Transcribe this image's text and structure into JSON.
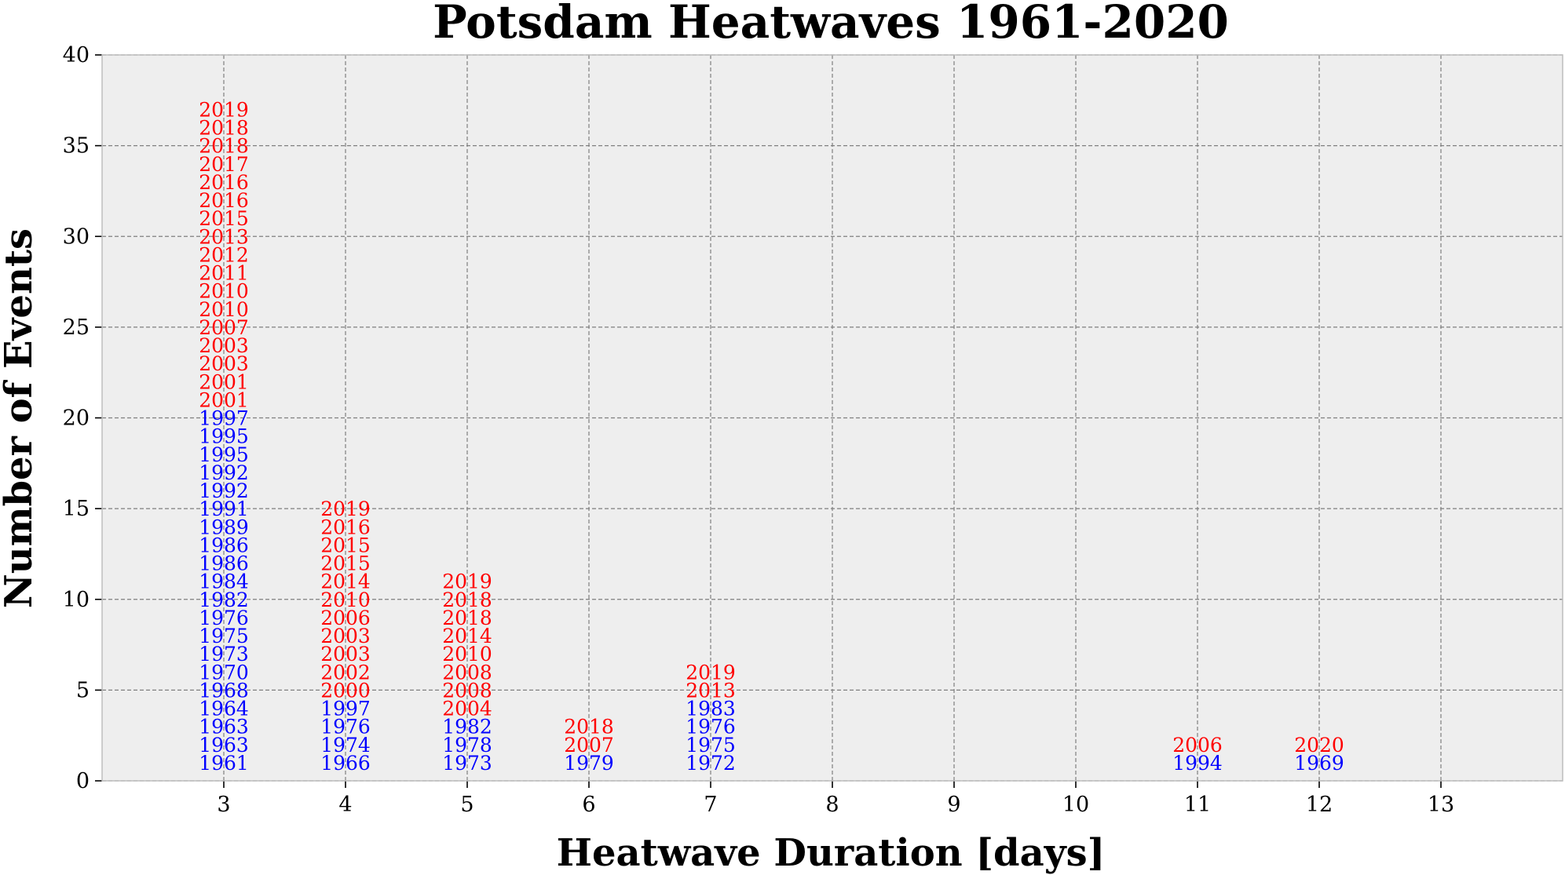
{
  "chart_data": {
    "type": "scatter",
    "title": "Potsdam Heatwaves 1961-2020",
    "xlabel": "Heatwave Duration [days]",
    "ylabel": "Number of Events",
    "xlim": [
      2,
      14
    ],
    "ylim": [
      0,
      40
    ],
    "xticks": [
      "3",
      "4",
      "5",
      "6",
      "7",
      "8",
      "9",
      "10",
      "11",
      "12",
      "13"
    ],
    "yticks": [
      "0",
      "5",
      "10",
      "15",
      "20",
      "25",
      "30",
      "35",
      "40"
    ],
    "grid": true,
    "background_color": "#eeeeee",
    "series": [
      {
        "color": "#0000ff",
        "points": [
          {
            "x": 3,
            "y": 1,
            "label": "1961"
          },
          {
            "x": 3,
            "y": 2,
            "label": "1963"
          },
          {
            "x": 3,
            "y": 3,
            "label": "1963"
          },
          {
            "x": 3,
            "y": 4,
            "label": "1964"
          },
          {
            "x": 3,
            "y": 5,
            "label": "1968"
          },
          {
            "x": 3,
            "y": 6,
            "label": "1970"
          },
          {
            "x": 3,
            "y": 7,
            "label": "1973"
          },
          {
            "x": 3,
            "y": 8,
            "label": "1975"
          },
          {
            "x": 3,
            "y": 9,
            "label": "1976"
          },
          {
            "x": 3,
            "y": 10,
            "label": "1982"
          },
          {
            "x": 3,
            "y": 11,
            "label": "1984"
          },
          {
            "x": 3,
            "y": 12,
            "label": "1986"
          },
          {
            "x": 3,
            "y": 13,
            "label": "1986"
          },
          {
            "x": 3,
            "y": 14,
            "label": "1989"
          },
          {
            "x": 3,
            "y": 15,
            "label": "1991"
          },
          {
            "x": 3,
            "y": 16,
            "label": "1992"
          },
          {
            "x": 3,
            "y": 17,
            "label": "1992"
          },
          {
            "x": 3,
            "y": 18,
            "label": "1995"
          },
          {
            "x": 3,
            "y": 19,
            "label": "1995"
          },
          {
            "x": 3,
            "y": 20,
            "label": "1997"
          },
          {
            "x": 4,
            "y": 1,
            "label": "1966"
          },
          {
            "x": 4,
            "y": 2,
            "label": "1974"
          },
          {
            "x": 4,
            "y": 3,
            "label": "1976"
          },
          {
            "x": 4,
            "y": 4,
            "label": "1997"
          },
          {
            "x": 5,
            "y": 1,
            "label": "1973"
          },
          {
            "x": 5,
            "y": 2,
            "label": "1978"
          },
          {
            "x": 5,
            "y": 3,
            "label": "1982"
          },
          {
            "x": 6,
            "y": 1,
            "label": "1979"
          },
          {
            "x": 7,
            "y": 1,
            "label": "1972"
          },
          {
            "x": 7,
            "y": 2,
            "label": "1975"
          },
          {
            "x": 7,
            "y": 3,
            "label": "1976"
          },
          {
            "x": 7,
            "y": 4,
            "label": "1983"
          },
          {
            "x": 11,
            "y": 1,
            "label": "1994"
          },
          {
            "x": 12,
            "y": 1,
            "label": "1969"
          }
        ]
      },
      {
        "color": "#ff0000",
        "points": [
          {
            "x": 3,
            "y": 21,
            "label": "2001"
          },
          {
            "x": 3,
            "y": 22,
            "label": "2001"
          },
          {
            "x": 3,
            "y": 23,
            "label": "2003"
          },
          {
            "x": 3,
            "y": 24,
            "label": "2003"
          },
          {
            "x": 3,
            "y": 25,
            "label": "2007"
          },
          {
            "x": 3,
            "y": 26,
            "label": "2010"
          },
          {
            "x": 3,
            "y": 27,
            "label": "2010"
          },
          {
            "x": 3,
            "y": 28,
            "label": "2011"
          },
          {
            "x": 3,
            "y": 29,
            "label": "2012"
          },
          {
            "x": 3,
            "y": 30,
            "label": "2013"
          },
          {
            "x": 3,
            "y": 31,
            "label": "2015"
          },
          {
            "x": 3,
            "y": 32,
            "label": "2016"
          },
          {
            "x": 3,
            "y": 33,
            "label": "2016"
          },
          {
            "x": 3,
            "y": 34,
            "label": "2017"
          },
          {
            "x": 3,
            "y": 35,
            "label": "2018"
          },
          {
            "x": 3,
            "y": 36,
            "label": "2018"
          },
          {
            "x": 3,
            "y": 37,
            "label": "2019"
          },
          {
            "x": 4,
            "y": 5,
            "label": "2000"
          },
          {
            "x": 4,
            "y": 6,
            "label": "2002"
          },
          {
            "x": 4,
            "y": 7,
            "label": "2003"
          },
          {
            "x": 4,
            "y": 8,
            "label": "2003"
          },
          {
            "x": 4,
            "y": 9,
            "label": "2006"
          },
          {
            "x": 4,
            "y": 10,
            "label": "2010"
          },
          {
            "x": 4,
            "y": 11,
            "label": "2014"
          },
          {
            "x": 4,
            "y": 12,
            "label": "2015"
          },
          {
            "x": 4,
            "y": 13,
            "label": "2015"
          },
          {
            "x": 4,
            "y": 14,
            "label": "2016"
          },
          {
            "x": 4,
            "y": 15,
            "label": "2019"
          },
          {
            "x": 5,
            "y": 4,
            "label": "2004"
          },
          {
            "x": 5,
            "y": 5,
            "label": "2008"
          },
          {
            "x": 5,
            "y": 6,
            "label": "2008"
          },
          {
            "x": 5,
            "y": 7,
            "label": "2010"
          },
          {
            "x": 5,
            "y": 8,
            "label": "2014"
          },
          {
            "x": 5,
            "y": 9,
            "label": "2018"
          },
          {
            "x": 5,
            "y": 10,
            "label": "2018"
          },
          {
            "x": 5,
            "y": 11,
            "label": "2019"
          },
          {
            "x": 6,
            "y": 2,
            "label": "2007"
          },
          {
            "x": 6,
            "y": 3,
            "label": "2018"
          },
          {
            "x": 7,
            "y": 5,
            "label": "2013"
          },
          {
            "x": 7,
            "y": 6,
            "label": "2019"
          },
          {
            "x": 11,
            "y": 2,
            "label": "2006"
          },
          {
            "x": 12,
            "y": 2,
            "label": "2020"
          }
        ]
      }
    ]
  }
}
